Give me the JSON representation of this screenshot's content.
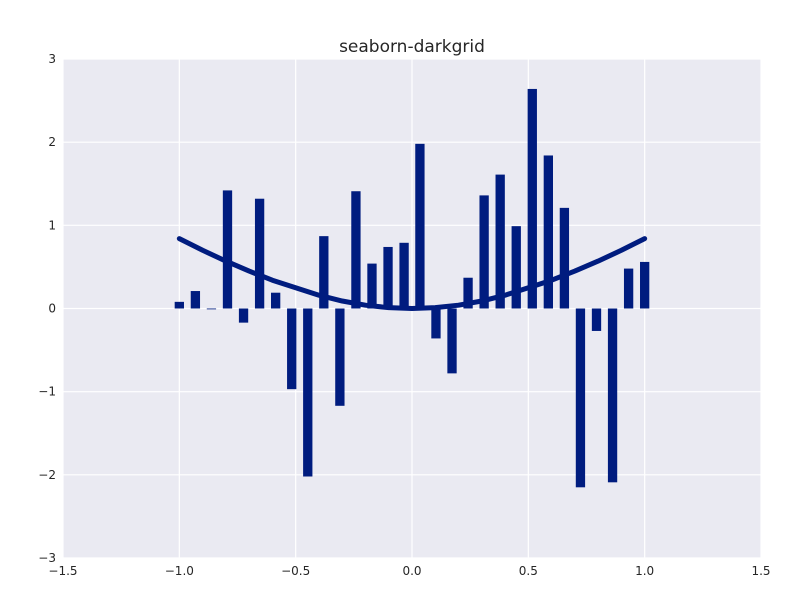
{
  "chart_data": {
    "type": "bar",
    "title": "seaborn-darkgrid",
    "xlabel": "",
    "ylabel": "",
    "xlim": [
      -1.5,
      1.5
    ],
    "ylim": [
      -3,
      3
    ],
    "grid": true,
    "legend": "none",
    "colors": {
      "background": "#eaeaf2",
      "grid": "#ffffff",
      "bars": "#001c7f",
      "line": "#001c7f"
    },
    "x_tick_labels": [
      "−1.5",
      "−1.0",
      "−0.5",
      "0.0",
      "0.5",
      "1.0",
      "1.5"
    ],
    "y_tick_labels": [
      "−3",
      "−2",
      "−1",
      "0",
      "1",
      "2",
      "3"
    ],
    "x_ticks": [
      -1.5,
      -1.0,
      -0.5,
      0.0,
      0.5,
      1.0,
      1.5
    ],
    "y_ticks": [
      -3,
      -2,
      -1,
      0,
      1,
      2,
      3
    ],
    "bar_width": 0.04,
    "series": [
      {
        "type": "bar",
        "x": [
          -1.0,
          -0.931,
          -0.862,
          -0.793,
          -0.724,
          -0.655,
          -0.586,
          -0.517,
          -0.448,
          -0.379,
          -0.31,
          -0.241,
          -0.172,
          -0.103,
          -0.034,
          0.034,
          0.103,
          0.172,
          0.241,
          0.31,
          0.379,
          0.448,
          0.517,
          0.586,
          0.655,
          0.724,
          0.793,
          0.862,
          0.931,
          1.0
        ],
        "values": [
          0.08,
          0.21,
          -0.01,
          1.42,
          -0.17,
          1.32,
          0.19,
          -0.97,
          -2.02,
          0.87,
          -1.17,
          1.41,
          0.54,
          0.74,
          0.79,
          1.98,
          -0.36,
          -0.78,
          0.37,
          1.36,
          1.61,
          0.99,
          2.64,
          1.84,
          1.21,
          -2.15,
          -0.27,
          -2.09,
          0.48,
          0.56
        ]
      },
      {
        "type": "line",
        "x": [
          -1.0,
          -0.9,
          -0.8,
          -0.7,
          -0.6,
          -0.5,
          -0.4,
          -0.3,
          -0.2,
          -0.1,
          0.0,
          0.1,
          0.2,
          0.3,
          0.4,
          0.5,
          0.6,
          0.7,
          0.8,
          0.9,
          1.0
        ],
        "values": [
          0.84,
          0.7,
          0.57,
          0.45,
          0.34,
          0.25,
          0.16,
          0.09,
          0.04,
          0.01,
          0.0,
          0.01,
          0.04,
          0.09,
          0.16,
          0.25,
          0.34,
          0.45,
          0.57,
          0.7,
          0.84
        ]
      }
    ]
  }
}
